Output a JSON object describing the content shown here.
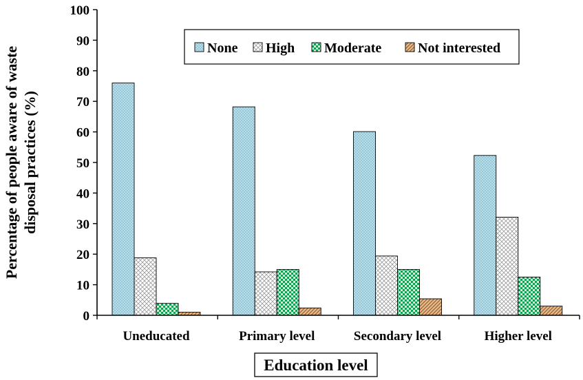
{
  "chart_data": {
    "type": "bar",
    "title": "",
    "xlabel": "Education level",
    "ylabel": "Percentage of people aware of waste disposal practices (%)",
    "ylabel_lines": [
      "Percentage of people aware of waste",
      "disposal practices (%)"
    ],
    "categories": [
      "Uneducated",
      "Primary level",
      "Secondary level",
      "Higher level"
    ],
    "series": [
      {
        "name": "None",
        "values": [
          76,
          68.2,
          60.1,
          52.3
        ],
        "color": "#b7dde8",
        "pattern": "dots"
      },
      {
        "name": "High",
        "values": [
          18.8,
          14.2,
          19.4,
          32.1
        ],
        "color": "#ffffff",
        "pattern": "crosshatch"
      },
      {
        "name": "Moderate",
        "values": [
          3.9,
          15.0,
          15.0,
          12.5
        ],
        "color": "#00b050",
        "pattern": "checker"
      },
      {
        "name": "Not interested",
        "values": [
          1.0,
          2.4,
          5.4,
          3.0
        ],
        "color": "#e6b88a",
        "pattern": "diagonal"
      }
    ],
    "ylim": [
      0,
      100
    ],
    "yticks": [
      0,
      10,
      20,
      30,
      40,
      50,
      60,
      70,
      80,
      90,
      100
    ],
    "grid": false,
    "legend_position": "top-right"
  }
}
